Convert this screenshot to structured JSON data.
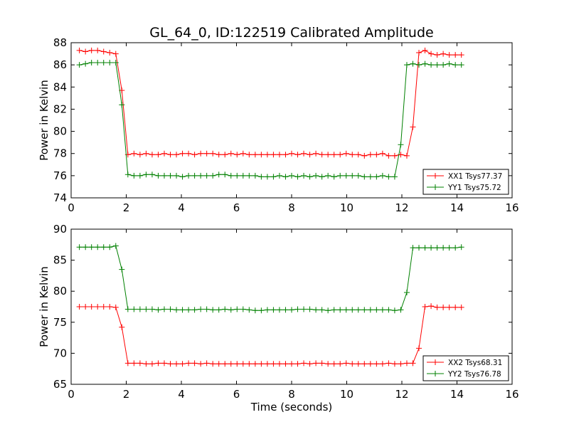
{
  "chart_data": [
    {
      "type": "line",
      "title": "GL_64_0, ID:122519 Calibrated Amplitude",
      "xlabel": "",
      "ylabel": "Power in Kelvin",
      "xlim": [
        0,
        16
      ],
      "ylim": [
        74,
        88
      ],
      "xticks": [
        "0",
        "2",
        "4",
        "6",
        "8",
        "10",
        "12",
        "14",
        "16"
      ],
      "yticks": [
        "74",
        "76",
        "78",
        "80",
        "82",
        "84",
        "86",
        "88"
      ],
      "grid": false,
      "legend_position": "lower-right",
      "x": [
        0.3,
        0.52,
        0.74,
        0.96,
        1.18,
        1.4,
        1.62,
        1.84,
        2.06,
        2.28,
        2.5,
        2.72,
        2.94,
        3.16,
        3.38,
        3.6,
        3.82,
        4.04,
        4.26,
        4.48,
        4.7,
        4.92,
        5.14,
        5.36,
        5.58,
        5.8,
        6.02,
        6.24,
        6.46,
        6.68,
        6.9,
        7.12,
        7.34,
        7.56,
        7.78,
        8.0,
        8.22,
        8.44,
        8.66,
        8.88,
        9.1,
        9.32,
        9.54,
        9.76,
        9.98,
        10.2,
        10.42,
        10.64,
        10.86,
        11.08,
        11.3,
        11.52,
        11.74,
        11.96,
        12.18,
        12.4,
        12.62,
        12.84,
        13.06,
        13.28,
        13.5,
        13.72,
        13.94,
        14.16
      ],
      "series": [
        {
          "name": "XX1 Tsys77.37",
          "color": "#ff0000",
          "values": [
            87.3,
            87.2,
            87.3,
            87.3,
            87.2,
            87.1,
            87.0,
            83.7,
            77.9,
            78.0,
            77.9,
            78.0,
            77.9,
            77.9,
            78.0,
            77.9,
            77.9,
            78.0,
            78.0,
            77.9,
            78.0,
            78.0,
            78.0,
            77.9,
            77.9,
            78.0,
            77.9,
            78.0,
            77.9,
            77.9,
            77.9,
            77.9,
            77.9,
            77.9,
            77.9,
            78.0,
            77.9,
            78.0,
            77.9,
            78.0,
            77.9,
            77.9,
            77.9,
            77.9,
            78.0,
            77.9,
            77.9,
            77.8,
            77.9,
            77.9,
            78.0,
            77.8,
            77.8,
            77.9,
            77.8,
            80.4,
            87.1,
            87.3,
            87.0,
            86.9,
            87.0,
            86.9,
            86.9,
            86.9
          ]
        },
        {
          "name": "YY1 Tsys75.72",
          "color": "#008000",
          "values": [
            86.0,
            86.1,
            86.2,
            86.2,
            86.2,
            86.2,
            86.2,
            82.4,
            76.1,
            76.0,
            76.0,
            76.1,
            76.1,
            76.0,
            76.0,
            76.0,
            76.0,
            75.9,
            76.0,
            76.0,
            76.0,
            76.0,
            76.0,
            76.1,
            76.1,
            76.0,
            76.0,
            76.0,
            76.0,
            76.0,
            75.9,
            75.9,
            75.9,
            76.0,
            75.9,
            76.0,
            75.9,
            76.0,
            75.9,
            76.0,
            75.9,
            76.0,
            75.9,
            76.0,
            76.0,
            76.0,
            76.0,
            75.9,
            75.9,
            75.9,
            76.0,
            75.9,
            75.9,
            78.8,
            86.0,
            86.1,
            86.0,
            86.1,
            86.0,
            86.0,
            86.0,
            86.1,
            86.0,
            86.0
          ]
        }
      ]
    },
    {
      "type": "line",
      "title": "",
      "xlabel": "Time (seconds)",
      "ylabel": "Power in Kelvin",
      "xlim": [
        0,
        16
      ],
      "ylim": [
        65,
        90
      ],
      "xticks": [
        "0",
        "2",
        "4",
        "6",
        "8",
        "10",
        "12",
        "14",
        "16"
      ],
      "yticks": [
        "65",
        "70",
        "75",
        "80",
        "85",
        "90"
      ],
      "grid": false,
      "legend_position": "lower-right",
      "x": [
        0.3,
        0.52,
        0.74,
        0.96,
        1.18,
        1.4,
        1.62,
        1.84,
        2.06,
        2.28,
        2.5,
        2.72,
        2.94,
        3.16,
        3.38,
        3.6,
        3.82,
        4.04,
        4.26,
        4.48,
        4.7,
        4.92,
        5.14,
        5.36,
        5.58,
        5.8,
        6.02,
        6.24,
        6.46,
        6.68,
        6.9,
        7.12,
        7.34,
        7.56,
        7.78,
        8.0,
        8.22,
        8.44,
        8.66,
        8.88,
        9.1,
        9.32,
        9.54,
        9.76,
        9.98,
        10.2,
        10.42,
        10.64,
        10.86,
        11.08,
        11.3,
        11.52,
        11.74,
        11.96,
        12.18,
        12.4,
        12.62,
        12.84,
        13.06,
        13.28,
        13.5,
        13.72,
        13.94,
        14.16
      ],
      "series": [
        {
          "name": "XX2 Tsys68.31",
          "color": "#ff0000",
          "values": [
            77.5,
            77.5,
            77.5,
            77.5,
            77.5,
            77.5,
            77.4,
            74.2,
            68.4,
            68.4,
            68.4,
            68.3,
            68.3,
            68.4,
            68.4,
            68.3,
            68.3,
            68.3,
            68.4,
            68.4,
            68.3,
            68.4,
            68.3,
            68.3,
            68.3,
            68.3,
            68.3,
            68.3,
            68.3,
            68.3,
            68.3,
            68.3,
            68.3,
            68.3,
            68.3,
            68.3,
            68.3,
            68.4,
            68.3,
            68.4,
            68.4,
            68.3,
            68.3,
            68.3,
            68.4,
            68.3,
            68.3,
            68.3,
            68.3,
            68.3,
            68.3,
            68.4,
            68.3,
            68.3,
            68.4,
            68.4,
            70.8,
            77.5,
            77.6,
            77.4,
            77.4,
            77.4,
            77.4,
            77.4
          ]
        },
        {
          "name": "YY2 Tsys76.78",
          "color": "#008000",
          "values": [
            87.1,
            87.1,
            87.1,
            87.1,
            87.1,
            87.1,
            87.3,
            83.5,
            77.1,
            77.1,
            77.1,
            77.1,
            77.1,
            77.0,
            77.1,
            77.1,
            77.0,
            77.0,
            77.0,
            77.0,
            77.1,
            77.1,
            77.0,
            77.0,
            77.1,
            77.0,
            77.1,
            77.1,
            77.0,
            76.9,
            76.9,
            77.0,
            77.0,
            77.0,
            77.0,
            77.0,
            77.1,
            77.1,
            77.1,
            77.0,
            77.0,
            76.9,
            77.0,
            77.0,
            77.0,
            77.0,
            77.0,
            77.0,
            77.0,
            77.0,
            77.0,
            77.0,
            76.9,
            77.0,
            79.8,
            87.0,
            87.0,
            87.0,
            87.0,
            87.0,
            87.0,
            87.0,
            87.0,
            87.1
          ]
        }
      ]
    }
  ]
}
